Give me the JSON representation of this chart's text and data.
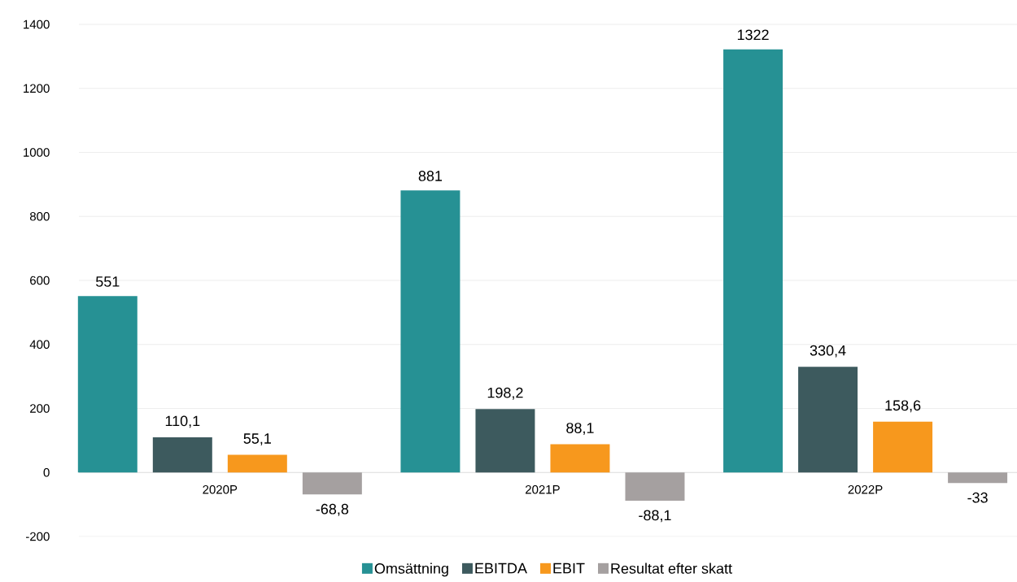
{
  "chart_data": {
    "type": "bar",
    "categories": [
      "2020P",
      "2021P",
      "2022P"
    ],
    "series": [
      {
        "name": "Omsättning",
        "color": "#269194",
        "values": [
          551,
          881,
          1322
        ],
        "value_labels": [
          "551",
          "881",
          "1322"
        ]
      },
      {
        "name": "EBITDA",
        "color": "#3d5a5e",
        "values": [
          110.1,
          198.2,
          330.4
        ],
        "value_labels": [
          "110,1",
          "198,2",
          "330,4"
        ]
      },
      {
        "name": "EBIT",
        "color": "#f7981d",
        "values": [
          55.1,
          88.1,
          158.6
        ],
        "value_labels": [
          "55,1",
          "88,1",
          "158,6"
        ]
      },
      {
        "name": "Resultat efter skatt",
        "color": "#a5a0a0",
        "values": [
          -68.8,
          -88.1,
          -33
        ],
        "value_labels": [
          "-68,8",
          "-88,1",
          "-33"
        ]
      }
    ],
    "ylim": [
      -200,
      1400
    ],
    "yticks": [
      -200,
      0,
      200,
      400,
      600,
      800,
      1000,
      1200,
      1400
    ],
    "grid": "y",
    "legend": "bottom"
  }
}
